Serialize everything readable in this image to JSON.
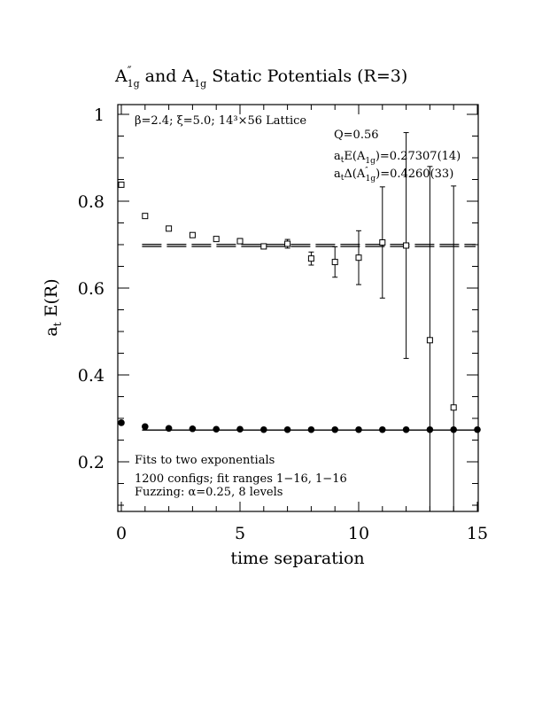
{
  "chart_data": {
    "type": "scatter",
    "title": {
      "part1": "A",
      "part1_sup": "″",
      "part1_sub": "1g",
      "and": " and ",
      "part2": "A",
      "part2_sub": "1g",
      "rest": " Static Potentials (R=3)"
    },
    "xlabel": "time separation",
    "ylabel": {
      "main": "a",
      "sub": "t",
      "rest": " E(R)"
    },
    "xlim": [
      0,
      15
    ],
    "ylim": [
      0.08,
      1.02
    ],
    "xticks_major": [
      0,
      5,
      10,
      15
    ],
    "xtick_labels": [
      "0",
      "5",
      "10",
      "15"
    ],
    "yticks_major": [
      0.2,
      0.4,
      0.6,
      0.8,
      1.0
    ],
    "ytick_labels": [
      "0.2",
      "0.4",
      "0.6",
      "0.8",
      "1"
    ],
    "grid": false,
    "annotations": {
      "lattice": "β=2.4; ξ=5.0; 14³×56 Lattice",
      "q": "Q=0.56",
      "energy": {
        "a": "a",
        "t": "t",
        "E": "E(A",
        "sub": "1g",
        "value": ")=0.27307(14)"
      },
      "delta": {
        "a": "a",
        "t": "t",
        "D": "Δ(A",
        "sup": "″",
        "sub": "1g",
        "value": ")=0.4260(33)"
      },
      "fit_title": "Fits to two exponentials",
      "fit_configs": "1200 configs; fit ranges 1−16, 1−16",
      "fuzzing": "Fuzzing: α=0.25, 8 levels"
    },
    "series": [
      {
        "name": "A″1g",
        "marker": "open-square",
        "points": [
          {
            "x": 0,
            "y": 0.838,
            "err": 0.004
          },
          {
            "x": 1,
            "y": 0.766,
            "err": 0.004
          },
          {
            "x": 2,
            "y": 0.737,
            "err": 0.004
          },
          {
            "x": 3,
            "y": 0.722,
            "err": 0.005
          },
          {
            "x": 4,
            "y": 0.713,
            "err": 0.005
          },
          {
            "x": 5,
            "y": 0.708,
            "err": 0.006
          },
          {
            "x": 6,
            "y": 0.696,
            "err": 0.004
          },
          {
            "x": 7,
            "y": 0.702,
            "err": 0.01
          },
          {
            "x": 8,
            "y": 0.668,
            "err": 0.015
          },
          {
            "x": 9,
            "y": 0.66,
            "err": 0.035
          },
          {
            "x": 10,
            "y": 0.67,
            "err": 0.062
          },
          {
            "x": 11,
            "y": 0.705,
            "err": 0.128
          },
          {
            "x": 12,
            "y": 0.698,
            "err": 0.26
          },
          {
            "x": 13,
            "y": 0.48,
            "err": 0.4
          },
          {
            "x": 14,
            "y": 0.325,
            "err": 0.51
          }
        ]
      },
      {
        "name": "A1g",
        "marker": "filled-circle",
        "points": [
          {
            "x": 0,
            "y": 0.29
          },
          {
            "x": 1,
            "y": 0.281
          },
          {
            "x": 2,
            "y": 0.277
          },
          {
            "x": 3,
            "y": 0.276
          },
          {
            "x": 4,
            "y": 0.275
          },
          {
            "x": 5,
            "y": 0.275
          },
          {
            "x": 6,
            "y": 0.274
          },
          {
            "x": 7,
            "y": 0.274
          },
          {
            "x": 8,
            "y": 0.274
          },
          {
            "x": 9,
            "y": 0.274
          },
          {
            "x": 10,
            "y": 0.274
          },
          {
            "x": 11,
            "y": 0.274
          },
          {
            "x": 12,
            "y": 0.274
          },
          {
            "x": 13,
            "y": 0.274
          },
          {
            "x": 14,
            "y": 0.274
          },
          {
            "x": 15,
            "y": 0.274
          }
        ]
      }
    ],
    "fit_lines": [
      {
        "y": 0.7005,
        "x_range": [
          0.5,
          15
        ],
        "style": "dashed"
      },
      {
        "y": 0.6957,
        "x_range": [
          0.5,
          15
        ],
        "style": "dashed"
      },
      {
        "y": 0.27307,
        "x_range": [
          0.5,
          15
        ],
        "style": "solid"
      }
    ]
  }
}
